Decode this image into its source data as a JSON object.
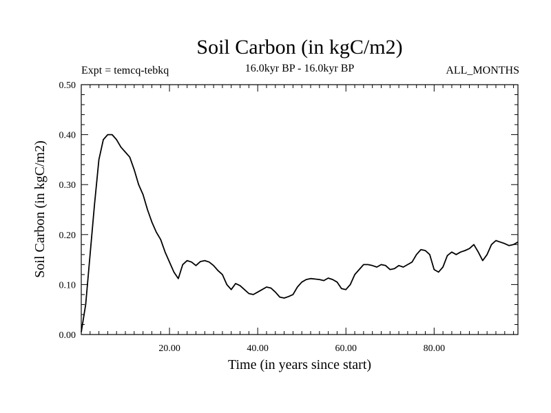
{
  "chart_data": {
    "type": "line",
    "title": "Soil Carbon (in kgC/m2)",
    "subtitle_left": "Expt = temcq-tebkq",
    "subtitle_center": "16.0kyr BP - 16.0kyr BP",
    "subtitle_right": "ALL_MONTHS",
    "xlabel": "Time (in years since start)",
    "ylabel": "Soil Carbon (in kgC/m2)",
    "xlim": [
      0,
      99
    ],
    "ylim": [
      0.0,
      0.5
    ],
    "x_ticks": [
      20,
      40,
      60,
      80
    ],
    "x_tick_labels": [
      "20.00",
      "40.00",
      "60.00",
      "80.00"
    ],
    "y_ticks": [
      0.0,
      0.1,
      0.2,
      0.3,
      0.4,
      0.5
    ],
    "y_tick_labels": [
      "0.00",
      "0.10",
      "0.20",
      "0.30",
      "0.40",
      "0.50"
    ],
    "grid": false,
    "series": [
      {
        "name": "Soil Carbon",
        "color": "#000000",
        "x": [
          0,
          1,
          2,
          3,
          4,
          5,
          6,
          7,
          8,
          9,
          10,
          11,
          12,
          13,
          14,
          15,
          16,
          17,
          18,
          19,
          20,
          21,
          22,
          23,
          24,
          25,
          26,
          27,
          28,
          29,
          30,
          31,
          32,
          33,
          34,
          35,
          36,
          37,
          38,
          39,
          40,
          41,
          42,
          43,
          44,
          45,
          46,
          47,
          48,
          49,
          50,
          51,
          52,
          53,
          54,
          55,
          56,
          57,
          58,
          59,
          60,
          61,
          62,
          63,
          64,
          65,
          66,
          67,
          68,
          69,
          70,
          71,
          72,
          73,
          74,
          75,
          76,
          77,
          78,
          79,
          80,
          81,
          82,
          83,
          84,
          85,
          86,
          87,
          88,
          89,
          90,
          91,
          92,
          93,
          94,
          95,
          96,
          97,
          98,
          99
        ],
        "values": [
          0.005,
          0.06,
          0.16,
          0.26,
          0.35,
          0.39,
          0.4,
          0.4,
          0.39,
          0.375,
          0.365,
          0.355,
          0.33,
          0.3,
          0.28,
          0.25,
          0.225,
          0.205,
          0.19,
          0.165,
          0.145,
          0.125,
          0.112,
          0.14,
          0.148,
          0.145,
          0.138,
          0.146,
          0.148,
          0.145,
          0.138,
          0.128,
          0.12,
          0.1,
          0.09,
          0.102,
          0.098,
          0.09,
          0.082,
          0.08,
          0.085,
          0.09,
          0.095,
          0.093,
          0.085,
          0.075,
          0.073,
          0.076,
          0.08,
          0.095,
          0.105,
          0.11,
          0.112,
          0.111,
          0.11,
          0.108,
          0.113,
          0.11,
          0.105,
          0.092,
          0.09,
          0.1,
          0.12,
          0.13,
          0.14,
          0.14,
          0.138,
          0.135,
          0.14,
          0.138,
          0.13,
          0.132,
          0.138,
          0.135,
          0.14,
          0.145,
          0.16,
          0.17,
          0.168,
          0.16,
          0.13,
          0.125,
          0.135,
          0.158,
          0.165,
          0.16,
          0.165,
          0.168,
          0.172,
          0.18,
          0.165,
          0.148,
          0.16,
          0.18,
          0.188,
          0.185,
          0.182,
          0.178,
          0.18,
          0.185
        ]
      }
    ]
  }
}
